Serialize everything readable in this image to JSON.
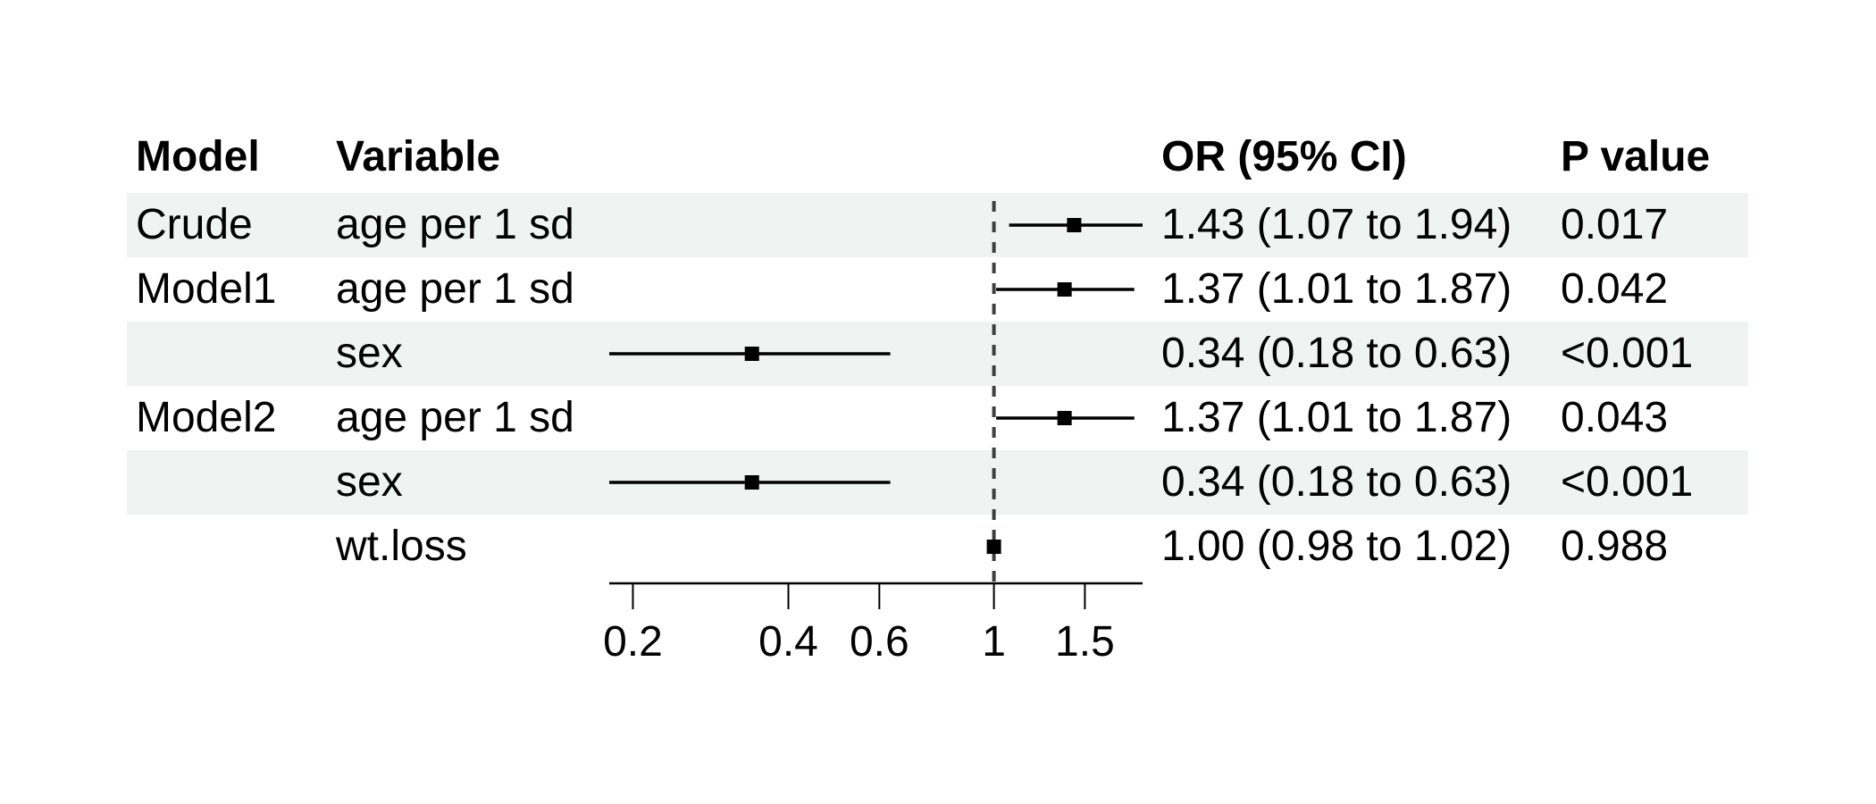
{
  "meta": {
    "background_color": "#ffffff",
    "stripe_color": "#eff3f2",
    "text_color": "#000000",
    "marker_color": "#000000",
    "axis_color": "#000000",
    "reference_line_color": "#3f3f3f"
  },
  "table": {
    "columns": [
      {
        "key": "model",
        "label": "Model"
      },
      {
        "key": "variable",
        "label": "Variable"
      },
      {
        "key": "or_ci",
        "label": "OR (95% CI)"
      },
      {
        "key": "p",
        "label": "P value"
      }
    ],
    "rows": [
      {
        "model": "Crude",
        "variable": "age per 1 sd",
        "or_ci": "1.43 (1.07 to 1.94)",
        "p": "0.017",
        "striped": true
      },
      {
        "model": "Model1",
        "variable": "age per 1 sd",
        "or_ci": "1.37 (1.01 to 1.87)",
        "p": "0.042",
        "striped": false
      },
      {
        "model": "",
        "variable": "sex",
        "or_ci": "0.34 (0.18 to 0.63)",
        "p": "<0.001",
        "striped": true
      },
      {
        "model": "Model2",
        "variable": "age per 1 sd",
        "or_ci": "1.37 (1.01 to 1.87)",
        "p": "0.043",
        "striped": false
      },
      {
        "model": "",
        "variable": "sex",
        "or_ci": "0.34 (0.18 to 0.63)",
        "p": "<0.001",
        "striped": true
      },
      {
        "model": "",
        "variable": "wt.loss",
        "or_ci": "1.00 (0.98 to 1.02)",
        "p": "0.988",
        "striped": false
      }
    ]
  },
  "chart_data": {
    "type": "scatter",
    "subtype": "forest-plot",
    "x_scale": "log",
    "xlim": [
      0.18,
      1.94
    ],
    "x_ticks": [
      0.2,
      0.4,
      0.6,
      1,
      1.5
    ],
    "x_tick_labels": [
      "0.2",
      "0.4",
      "0.6",
      "1",
      "1.5"
    ],
    "reference_line": 1.0,
    "points": [
      {
        "row": 0,
        "variable": "age per 1 sd",
        "est": 1.43,
        "lower": 1.07,
        "upper": 1.94
      },
      {
        "row": 1,
        "variable": "age per 1 sd",
        "est": 1.37,
        "lower": 1.01,
        "upper": 1.87
      },
      {
        "row": 2,
        "variable": "sex",
        "est": 0.34,
        "lower": 0.18,
        "upper": 0.63
      },
      {
        "row": 3,
        "variable": "age per 1 sd",
        "est": 1.37,
        "lower": 1.01,
        "upper": 1.87
      },
      {
        "row": 4,
        "variable": "sex",
        "est": 0.34,
        "lower": 0.18,
        "upper": 0.63
      },
      {
        "row": 5,
        "variable": "wt.loss",
        "est": 1.0,
        "lower": 0.98,
        "upper": 1.02
      }
    ]
  }
}
